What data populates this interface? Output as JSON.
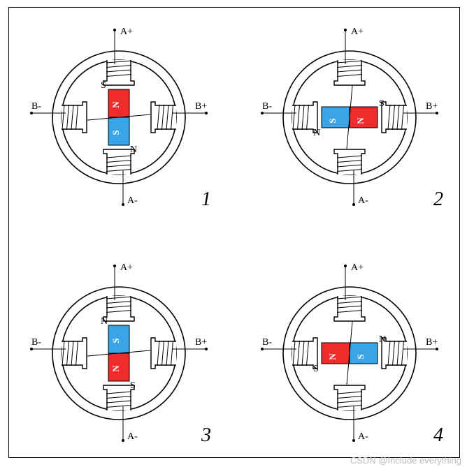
{
  "colors": {
    "n_fill": "#ef2b2b",
    "s_fill": "#3aa5e6",
    "stroke": "#000000"
  },
  "labels": {
    "a_plus": "A+",
    "a_minus": "A-",
    "b_plus": "B+",
    "b_minus": "B-",
    "n": "N",
    "s": "S"
  },
  "figures": [
    {
      "num": "1",
      "rotor_orient": "vertical",
      "top_color": "N",
      "stator_top": "S",
      "stator_bottom": "N",
      "stator_left": "",
      "stator_right": ""
    },
    {
      "num": "2",
      "rotor_orient": "horizontal",
      "top_color": "N",
      "stator_top": "",
      "stator_bottom": "",
      "stator_left": "N",
      "stator_right": "S"
    },
    {
      "num": "3",
      "rotor_orient": "vertical",
      "top_color": "S",
      "stator_top": "N",
      "stator_bottom": "S",
      "stator_left": "",
      "stator_right": ""
    },
    {
      "num": "4",
      "rotor_orient": "horizontal",
      "top_color": "S",
      "stator_top": "",
      "stator_bottom": "",
      "stator_left": "S",
      "stator_right": "N"
    }
  ],
  "watermark": "CSDN @Include everything"
}
